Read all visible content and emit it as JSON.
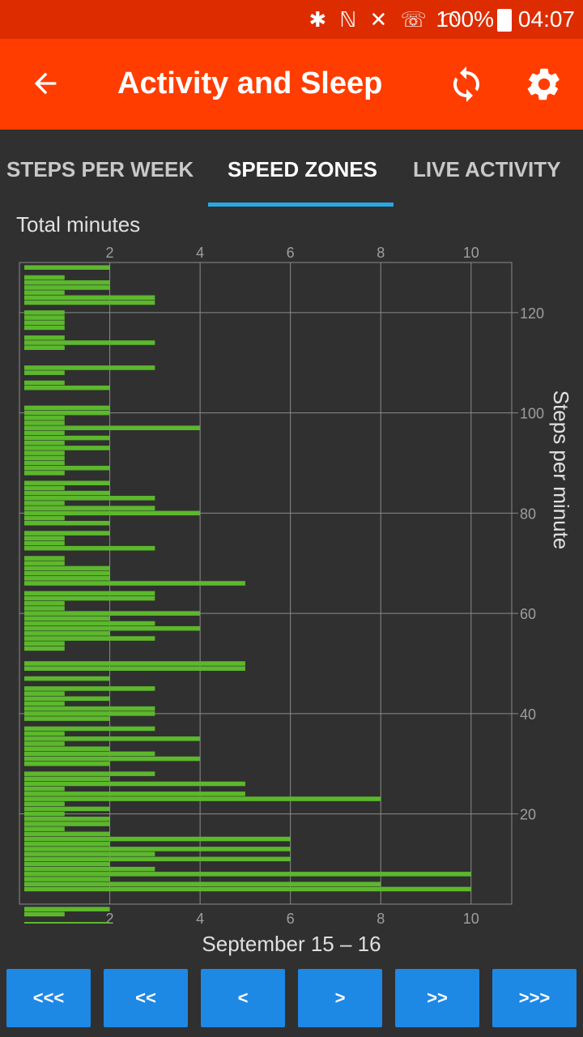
{
  "status_bar": {
    "icons_text": "✱ ℕ ✕ ☏ ◠",
    "battery": "100%",
    "time": "04:07"
  },
  "app_bar": {
    "title": "Activity and Sleep",
    "back_icon": "arrow-back-icon",
    "sync_icon": "sync-icon",
    "settings_icon": "settings-gear-icon"
  },
  "tabs": [
    {
      "label": "STEPS PER WEEK",
      "active": false
    },
    {
      "label": "SPEED ZONES",
      "active": true
    },
    {
      "label": "LIVE ACTIVITY",
      "active": false
    }
  ],
  "colors": {
    "bar": "#5cb82c",
    "accent": "#29a8e6",
    "appbar": "#ff3d00",
    "statusbar": "#dd2c00",
    "button": "#1e88e5"
  },
  "chart_data": {
    "type": "bar",
    "orientation": "horizontal",
    "title": "Total minutes",
    "xlabel": "Total minutes",
    "ylabel": "Steps per minute",
    "xlim": [
      0,
      10.9
    ],
    "ylim": [
      2,
      130
    ],
    "xticks": [
      2,
      4,
      6,
      8,
      10
    ],
    "yticks": [
      20,
      40,
      60,
      80,
      100,
      120
    ],
    "grid": true,
    "series": [
      {
        "values": [
          [
            129,
            2
          ],
          [
            127,
            1
          ],
          [
            126,
            2
          ],
          [
            125,
            2
          ],
          [
            124,
            1
          ],
          [
            123,
            3
          ],
          [
            122,
            3
          ],
          [
            120,
            1
          ],
          [
            119,
            1
          ],
          [
            118,
            1
          ],
          [
            117,
            1
          ],
          [
            115,
            1
          ],
          [
            114,
            3
          ],
          [
            113,
            1
          ],
          [
            109,
            3
          ],
          [
            108,
            1
          ],
          [
            106,
            1
          ],
          [
            105,
            2
          ],
          [
            101,
            2
          ],
          [
            100,
            2
          ],
          [
            99,
            1
          ],
          [
            98,
            1
          ],
          [
            97,
            4
          ],
          [
            96,
            1
          ],
          [
            95,
            2
          ],
          [
            94,
            1
          ],
          [
            93,
            2
          ],
          [
            92,
            1
          ],
          [
            91,
            1
          ],
          [
            90,
            1
          ],
          [
            89,
            2
          ],
          [
            88,
            1
          ],
          [
            86,
            2
          ],
          [
            85,
            1
          ],
          [
            84,
            2
          ],
          [
            83,
            3
          ],
          [
            82,
            1
          ],
          [
            81,
            3
          ],
          [
            80,
            4
          ],
          [
            79,
            1
          ],
          [
            78,
            2
          ],
          [
            76,
            2
          ],
          [
            75,
            1
          ],
          [
            74,
            1
          ],
          [
            73,
            3
          ],
          [
            71,
            1
          ],
          [
            70,
            1
          ],
          [
            69,
            2
          ],
          [
            68,
            2
          ],
          [
            67,
            2
          ],
          [
            66,
            5
          ],
          [
            64,
            3
          ],
          [
            63,
            3
          ],
          [
            62,
            1
          ],
          [
            61,
            1
          ],
          [
            60,
            4
          ],
          [
            59,
            2
          ],
          [
            58,
            3
          ],
          [
            57,
            4
          ],
          [
            56,
            2
          ],
          [
            55,
            3
          ],
          [
            54,
            1
          ],
          [
            53,
            1
          ],
          [
            50,
            5
          ],
          [
            49,
            5
          ],
          [
            47,
            2
          ],
          [
            45,
            3
          ],
          [
            44,
            1
          ],
          [
            43,
            2
          ],
          [
            42,
            1
          ],
          [
            41,
            3
          ],
          [
            40,
            3
          ],
          [
            39,
            2
          ],
          [
            37,
            3
          ],
          [
            36,
            1
          ],
          [
            35,
            4
          ],
          [
            34,
            1
          ],
          [
            33,
            2
          ],
          [
            32,
            3
          ],
          [
            31,
            4
          ],
          [
            30,
            2
          ],
          [
            28,
            3
          ],
          [
            27,
            2
          ],
          [
            26,
            5
          ],
          [
            25,
            1
          ],
          [
            24,
            5
          ],
          [
            23,
            8
          ],
          [
            22,
            1
          ],
          [
            21,
            2
          ],
          [
            20,
            1
          ],
          [
            19,
            2
          ],
          [
            18,
            2
          ],
          [
            17,
            1
          ],
          [
            16,
            2
          ],
          [
            15,
            6
          ],
          [
            14,
            2
          ],
          [
            13,
            6
          ],
          [
            12,
            3
          ],
          [
            11,
            6
          ],
          [
            10,
            2
          ],
          [
            9,
            3
          ],
          [
            8,
            10
          ],
          [
            7,
            2
          ],
          [
            6,
            8
          ],
          [
            5,
            10
          ],
          [
            1,
            2
          ],
          [
            0,
            1
          ],
          [
            -2,
            2
          ]
        ]
      }
    ]
  },
  "footer": {
    "date_range": "September 15 – 16",
    "buttons": [
      "<<<",
      "<<",
      "<",
      ">",
      ">>",
      ">>>"
    ]
  }
}
